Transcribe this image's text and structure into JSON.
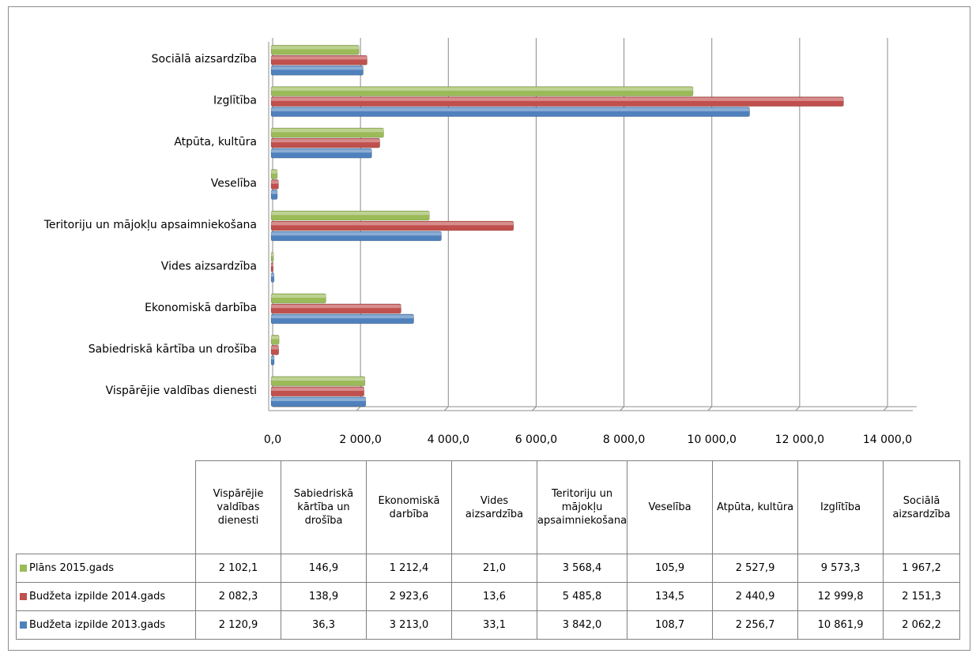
{
  "colors": {
    "plan_2015": "#9bbb59",
    "budget_2014": "#c0504d",
    "budget_2013": "#4f81bd",
    "grid": "#8c8c8c"
  },
  "chart_data": {
    "type": "bar",
    "orientation": "horizontal",
    "categories": [
      "Vispārējie valdības dienesti",
      "Sabiedriskā kārtība un drošība",
      "Ekonomiskā darbība",
      "Vides aizsardzība",
      "Teritoriju un mājokļu apsaimniekošana",
      "Veselība",
      "Atpūta, kultūra",
      "Izglītība",
      "Sociālā aizsardzība"
    ],
    "series": [
      {
        "name": "Plāns 2015.gads",
        "color": "#9bbb59",
        "values": [
          2102.1,
          146.9,
          1212.4,
          21.0,
          3568.4,
          105.9,
          2527.9,
          9573.3,
          1967.2
        ]
      },
      {
        "name": "Budžeta izpilde 2014.gads",
        "color": "#c0504d",
        "values": [
          2082.3,
          138.9,
          2923.6,
          13.6,
          5485.8,
          134.5,
          2440.9,
          12999.8,
          2151.3
        ]
      },
      {
        "name": "Budžeta izpilde 2013.gads",
        "color": "#4f81bd",
        "values": [
          2120.9,
          36.3,
          3213.0,
          33.1,
          3842.0,
          108.7,
          2256.7,
          10861.9,
          2062.2
        ]
      }
    ],
    "xlim": [
      0,
      14000
    ],
    "x_ticks": [
      "0,0",
      "2 000,0",
      "4 000,0",
      "6 000,0",
      "8 000,0",
      "10 000,0",
      "12 000,0",
      "14 000,0"
    ],
    "grid": true,
    "legend": "data-table-below"
  },
  "table": {
    "headers": [
      "Vispārējie valdības dienesti",
      "Sabiedriskā kārtība un drošība",
      "Ekonomiskā darbība",
      "Vides aizsardzība",
      "Teritoriju un mājokļu apsaimniekošana",
      "Veselība",
      "Atpūta, kultūra",
      "Izglītība",
      "Sociālā aizsardzība"
    ],
    "rows": [
      {
        "label": "Plāns 2015.gads",
        "color": "#9bbb59",
        "cells": [
          "2 102,1",
          "146,9",
          "1 212,4",
          "21,0",
          "3 568,4",
          "105,9",
          "2 527,9",
          "9 573,3",
          "1 967,2"
        ]
      },
      {
        "label": "Budžeta izpilde 2014.gads",
        "color": "#c0504d",
        "cells": [
          "2 082,3",
          "138,9",
          "2 923,6",
          "13,6",
          "5 485,8",
          "134,5",
          "2 440,9",
          "12 999,8",
          "2 151,3"
        ]
      },
      {
        "label": "Budžeta izpilde 2013.gads",
        "color": "#4f81bd",
        "cells": [
          "2 120,9",
          "36,3",
          "3 213,0",
          "33,1",
          "3 842,0",
          "108,7",
          "2 256,7",
          "10 861,9",
          "2 062,2"
        ]
      }
    ]
  }
}
